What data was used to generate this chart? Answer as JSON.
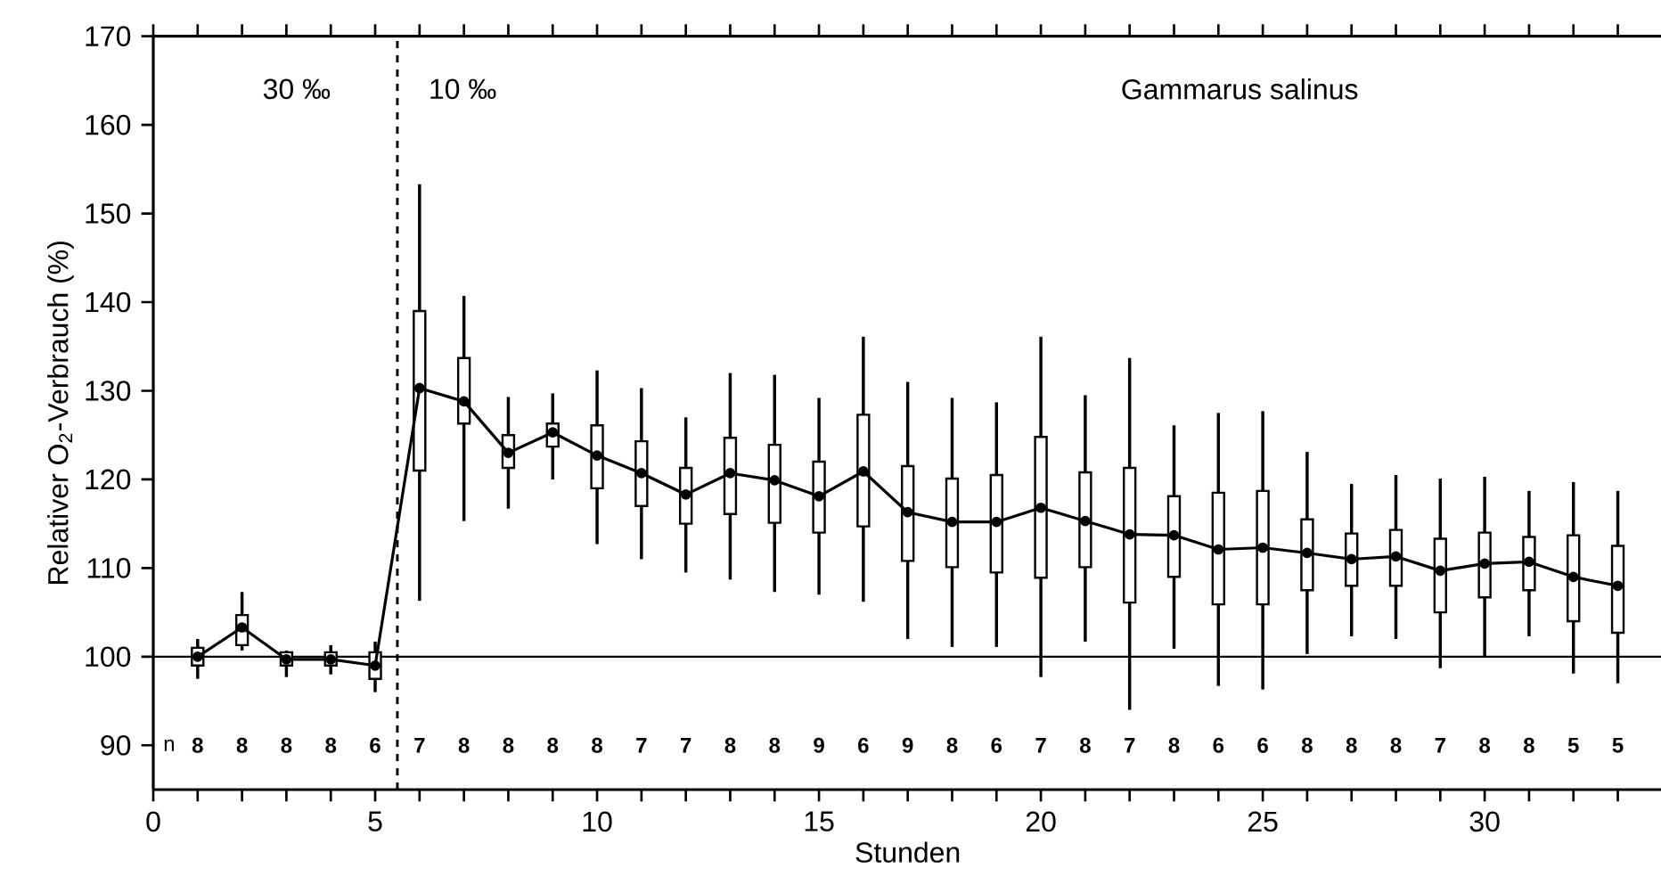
{
  "chart_data": {
    "type": "box",
    "xlabel": "Stunden",
    "ylabel": "Relativer O$_{2}$-Verbrauch (%)",
    "x": [
      1,
      2,
      3,
      4,
      5,
      6,
      7,
      8,
      9,
      10,
      11,
      12,
      13,
      14,
      15,
      16,
      17,
      18,
      19,
      20,
      21,
      22,
      23,
      24,
      25,
      26,
      27,
      28,
      29,
      30,
      31,
      32,
      33
    ],
    "xlim": [
      0,
      34
    ],
    "ylim": [
      85,
      170
    ],
    "xticks": [
      0,
      {
        "value": 1,
        "label": null
      },
      {
        "value": 2,
        "label": null
      },
      {
        "value": 3,
        "label": null
      },
      {
        "value": 4,
        "label": null
      },
      5,
      {
        "value": 6,
        "label": null
      },
      {
        "value": 7,
        "label": null
      },
      {
        "value": 8,
        "label": null
      },
      {
        "value": 9,
        "label": null
      },
      10,
      {
        "value": 11,
        "label": null
      },
      {
        "value": 12,
        "label": null
      },
      {
        "value": 13,
        "label": null
      },
      {
        "value": 14,
        "label": null
      },
      15,
      {
        "value": 16,
        "label": null
      },
      {
        "value": 17,
        "label": null
      },
      {
        "value": 18,
        "label": null
      },
      {
        "value": 19,
        "label": null
      },
      20,
      {
        "value": 21,
        "label": null
      },
      {
        "value": 22,
        "label": null
      },
      {
        "value": 23,
        "label": null
      },
      {
        "value": 24,
        "label": null
      },
      25,
      {
        "value": 26,
        "label": null
      },
      {
        "value": 27,
        "label": null
      },
      {
        "value": 28,
        "label": null
      },
      {
        "value": 29,
        "label": null
      },
      30,
      {
        "value": 31,
        "label": null
      },
      {
        "value": 32,
        "label": null
      },
      {
        "value": 33,
        "label": null
      }
    ],
    "yticks": [
      90,
      100,
      110,
      120,
      130,
      140,
      150,
      160,
      170
    ],
    "marker": "circle",
    "series": [
      {
        "color": "#000000",
        "boxes": [
          {
            "low": 97.5,
            "q1": 99,
            "median": 100,
            "q3": 101,
            "high": 102
          },
          {
            "low": 100.7,
            "q1": 101.3,
            "median": 103.3,
            "q3": 104.7,
            "high": 107.3
          },
          {
            "low": 97.7,
            "q1": 99,
            "median": 99.7,
            "q3": 100.5,
            "high": 100.7
          },
          {
            "low": 98,
            "q1": 99,
            "median": 99.7,
            "q3": 100.5,
            "high": 101.3
          },
          {
            "low": 96,
            "q1": 97.5,
            "median": 99,
            "q3": 100.5,
            "high": 101.7
          },
          {
            "low": 106.3,
            "q1": 121,
            "median": 130.3,
            "q3": 139,
            "high": 153.3
          },
          {
            "low": 115.3,
            "q1": 126.3,
            "median": 128.8,
            "q3": 133.7,
            "high": 140.7
          },
          {
            "low": 116.7,
            "q1": 121.3,
            "median": 123,
            "q3": 125,
            "high": 129.3
          },
          {
            "low": 120,
            "q1": 123.7,
            "median": 125.3,
            "q3": 126.3,
            "high": 129.7
          },
          {
            "low": 112.7,
            "q1": 119,
            "median": 122.7,
            "q3": 126.1,
            "high": 132.3
          },
          {
            "low": 111,
            "q1": 117,
            "median": 120.7,
            "q3": 124.3,
            "high": 130.3
          },
          {
            "low": 109.5,
            "q1": 115,
            "median": 118.3,
            "q3": 121.3,
            "high": 127
          },
          {
            "low": 108.7,
            "q1": 116.1,
            "median": 120.7,
            "q3": 124.7,
            "high": 132
          },
          {
            "low": 107.3,
            "q1": 115.1,
            "median": 119.9,
            "q3": 123.9,
            "high": 131.8
          },
          {
            "low": 107,
            "q1": 114,
            "median": 118.1,
            "q3": 122,
            "high": 129.2
          },
          {
            "low": 106.2,
            "q1": 114.7,
            "median": 120.9,
            "q3": 127.3,
            "high": 136.1
          },
          {
            "low": 102,
            "q1": 110.8,
            "median": 116.3,
            "q3": 121.5,
            "high": 131
          },
          {
            "low": 101.1,
            "q1": 110.1,
            "median": 115.2,
            "q3": 120.1,
            "high": 129.2
          },
          {
            "low": 101.1,
            "q1": 109.5,
            "median": 115.2,
            "q3": 120.5,
            "high": 128.7
          },
          {
            "low": 97.7,
            "q1": 108.9,
            "median": 116.8,
            "q3": 124.8,
            "high": 136.1
          },
          {
            "low": 101.7,
            "q1": 110.1,
            "median": 115.3,
            "q3": 120.8,
            "high": 129.5
          },
          {
            "low": 94,
            "q1": 106.1,
            "median": 113.8,
            "q3": 121.3,
            "high": 133.7
          },
          {
            "low": 100.9,
            "q1": 109,
            "median": 113.7,
            "q3": 118.1,
            "high": 126.1
          },
          {
            "low": 96.7,
            "q1": 105.9,
            "median": 112.1,
            "q3": 118.5,
            "high": 127.5
          },
          {
            "low": 96.3,
            "q1": 105.9,
            "median": 112.3,
            "q3": 118.7,
            "high": 127.7
          },
          {
            "low": 100.3,
            "q1": 107.5,
            "median": 111.7,
            "q3": 115.5,
            "high": 123.1
          },
          {
            "low": 102.3,
            "q1": 108,
            "median": 111,
            "q3": 113.9,
            "high": 119.5
          },
          {
            "low": 102,
            "q1": 108,
            "median": 111.3,
            "q3": 114.3,
            "high": 120.5
          },
          {
            "low": 98.7,
            "q1": 105,
            "median": 109.7,
            "q3": 113.3,
            "high": 120.1
          },
          {
            "low": 100,
            "q1": 106.7,
            "median": 110.5,
            "q3": 114,
            "high": 120.3
          },
          {
            "low": 102.3,
            "q1": 107.5,
            "median": 110.7,
            "q3": 113.5,
            "high": 118.7
          },
          {
            "low": 98.1,
            "q1": 104,
            "median": 109,
            "q3": 113.7,
            "high": 119.7
          },
          {
            "low": 97,
            "q1": 102.7,
            "median": 108,
            "q3": 112.5,
            "high": 118.7
          }
        ]
      },
      {
        "type": "line",
        "color": "#000000",
        "values": [
          100,
          103.3,
          99.7,
          99.7,
          99,
          130.3,
          128.8,
          123,
          125.3,
          122.7,
          120.7,
          118.3,
          120.7,
          119.9,
          118.1,
          120.9,
          116.3,
          115.2,
          115.2,
          116.8,
          115.3,
          113.8,
          113.7,
          112.1,
          112.3,
          111.7,
          111,
          111.3,
          109.7,
          110.5,
          110.7,
          109,
          108
        ]
      }
    ],
    "ref_lines": [
      {
        "axis": "y",
        "value": 100,
        "line_style": "solid"
      },
      {
        "axis": "x",
        "value": 5.5,
        "line_style": "dashed"
      }
    ],
    "annotations": [
      "30 ‰",
      "10 ‰",
      "Gammarus salinus",
      "n",
      "8",
      "8",
      "8",
      "8",
      "6",
      "7",
      "8",
      "8",
      "8",
      "8",
      "7",
      "7",
      "8",
      "8",
      "9",
      "6",
      "9",
      "8",
      "6",
      "7",
      "8",
      "7",
      "8",
      "6",
      "6",
      "8",
      "8",
      "8",
      "7",
      "8",
      "8",
      "5",
      "5"
    ]
  }
}
